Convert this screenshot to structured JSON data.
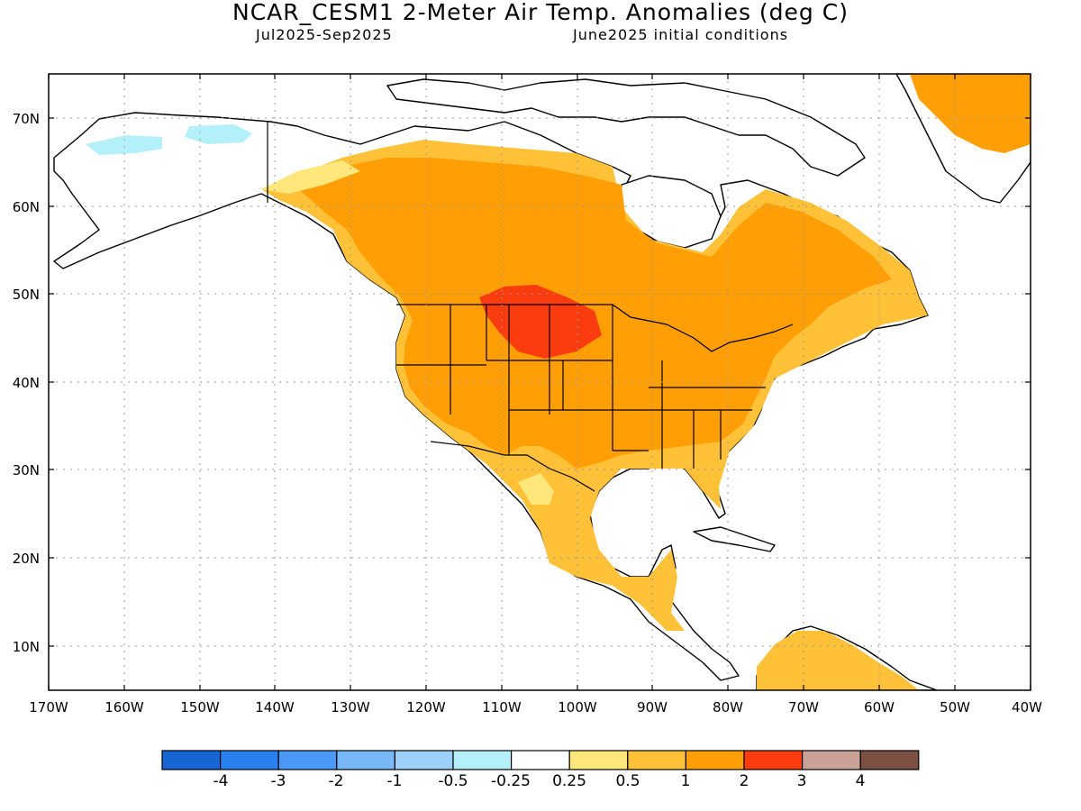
{
  "title": "NCAR_CESM1 2-Meter Air Temp. Anomalies (deg C)",
  "subtitle_left": "Jul2025-Sep2025",
  "subtitle_right": "June2025 initial conditions",
  "map": {
    "lat_labels": [
      "70N",
      "60N",
      "50N",
      "40N",
      "30N",
      "20N",
      "10N"
    ],
    "lon_labels": [
      "170W",
      "160W",
      "150W",
      "140W",
      "130W",
      "120W",
      "110W",
      "100W",
      "90W",
      "80W",
      "70W",
      "60W",
      "50W",
      "40W"
    ],
    "grid": true
  },
  "colorbar": {
    "labels": [
      "-4",
      "-3",
      "-2",
      "-1",
      "-0.5",
      "-0.25",
      "0.25",
      "0.5",
      "1",
      "2",
      "3",
      "4"
    ],
    "colors": [
      "#1766d4",
      "#2a80ee",
      "#4b99f5",
      "#78b8f7",
      "#9cd0f9",
      "#b4f0fa",
      "#ffffff",
      "#ffe77c",
      "#ffc138",
      "#ff9f05",
      "#fb3c0e",
      "#c9a197",
      "#7b5143"
    ]
  }
}
